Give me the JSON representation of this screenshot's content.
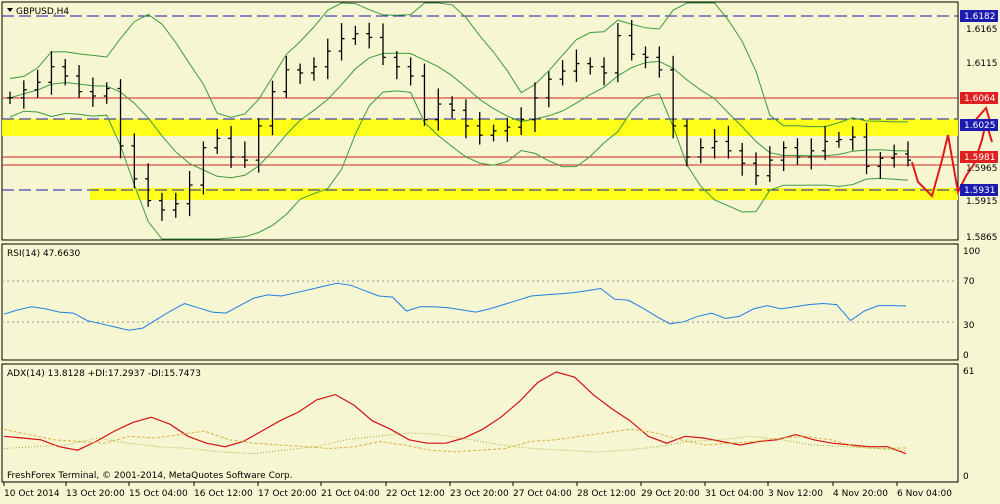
{
  "title": "GBPUSD,H4",
  "colors": {
    "bg": "#F6F6D2",
    "bands": "#3E9A3E",
    "bars": "#000000",
    "support": "#FFFF1A",
    "hline": "#D42020",
    "dashed": "#1B1BB0",
    "rsi": "#1E7FE6",
    "adx": "#D41010",
    "plus_di": "#D8B040",
    "minus_di": "#A8A838"
  },
  "price_panel": {
    "tick_labels": [
      "1.6165",
      "1.6115",
      "1.5965",
      "1.5915",
      "1.5865"
    ],
    "level_labels": {
      "top_dashed": "1.6182",
      "red_upper": "1.6064",
      "yellow_upper": "1.6025",
      "red_current": "1.5981",
      "dashed_lower": "1.5931"
    }
  },
  "rsi_panel": {
    "label": "RSI(14) 47.6630",
    "ticks": [
      "100",
      "70",
      "30",
      "0"
    ]
  },
  "adx_panel": {
    "label": "ADX(14) 13.8128 +DI:17.2937 -DI:15.7473",
    "ticks": [
      "61",
      "0"
    ],
    "copyright": "FreshForex Terminal, © 2001-2014, MetaQuotes Software Corp."
  },
  "time_axis": [
    "10 Oct 2014",
    "13 Oct 20:00",
    "15 Oct 04:00",
    "16 Oct 12:00",
    "17 Oct 20:00",
    "21 Oct 04:00",
    "22 Oct 12:00",
    "23 Oct 20:00",
    "27 Oct 04:00",
    "28 Oct 12:00",
    "29 Oct 20:00",
    "31 Oct 04:00",
    "3 Nov 12:00",
    "4 Nov 20:00",
    "6 Nov 04:00"
  ],
  "chart_data": [
    {
      "type": "line",
      "title": "GBPUSD,H4",
      "xlabel": "",
      "ylabel": "",
      "x_ticks": [
        "10 Oct 2014",
        "13 Oct 20:00",
        "15 Oct 04:00",
        "16 Oct 12:00",
        "17 Oct 20:00",
        "21 Oct 04:00",
        "22 Oct 12:00",
        "23 Oct 20:00",
        "27 Oct 04:00",
        "28 Oct 12:00",
        "29 Oct 20:00",
        "31 Oct 04:00",
        "3 Nov 12:00",
        "4 Nov 20:00",
        "6 Nov 04:00"
      ],
      "y_ticks": [
        1.6165,
        1.6115,
        1.5965,
        1.5915,
        1.5865
      ],
      "ylim": [
        1.585,
        1.621
      ],
      "horizontal_levels": [
        1.6182,
        1.6064,
        1.6025,
        1.5981,
        1.5931
      ],
      "series": [
        {
          "values": [
            1.6075,
            1.6088,
            1.61,
            1.6125,
            1.611,
            1.6085,
            1.6078,
            1.609,
            1.5998,
            1.5945,
            1.591,
            1.5895,
            1.5905,
            1.5935,
            1.5995,
            1.601,
            1.598,
            1.5975,
            1.603,
            1.6085,
            1.612,
            1.6115,
            1.6125,
            1.615,
            1.617,
            1.6178,
            1.6172,
            1.614,
            1.6125,
            1.611,
            1.604,
            1.6065,
            1.6055,
            1.603,
            1.6015,
            1.6022,
            1.6028,
            1.604,
            1.6075,
            1.6105,
            1.6118,
            1.613,
            1.6125,
            1.6115,
            1.6175,
            1.6145,
            1.614,
            1.612,
            1.603,
            1.598,
            1.5995,
            1.6005,
            1.599,
            1.597,
            1.595,
            1.5975,
            1.5995,
            1.598,
            1.599,
            1.6005,
            1.6008,
            1.6012,
            1.5965,
            1.5978,
            1.5985,
            1.5975
          ]
        }
      ]
    },
    {
      "type": "line",
      "title": "RSI(14) 47.6630",
      "ylim": [
        0,
        100
      ],
      "y_ticks": [
        100,
        70,
        30,
        0
      ],
      "series": [
        {
          "values": [
            40,
            44,
            47,
            45,
            42,
            41,
            34,
            31,
            28,
            25,
            27,
            35,
            43,
            50,
            46,
            42,
            41,
            48,
            55,
            58,
            57,
            60,
            63,
            66,
            69,
            67,
            62,
            57,
            56,
            43,
            47,
            47,
            46,
            44,
            42,
            45,
            49,
            53,
            57,
            58,
            59,
            60,
            62,
            64,
            54,
            53,
            46,
            38,
            31,
            33,
            38,
            41,
            36,
            38,
            45,
            48,
            45,
            47,
            49,
            50,
            49,
            34,
            43,
            48,
            48,
            47.66
          ]
        }
      ]
    },
    {
      "type": "line",
      "title": "ADX(14) 13.8128 +DI:17.2937 -DI:15.7473",
      "ylim": [
        0,
        61
      ],
      "y_ticks": [
        61,
        0
      ],
      "series": [
        {
          "values": [
            24,
            23,
            22,
            18,
            16,
            21,
            27,
            32,
            35,
            31,
            24,
            20,
            18,
            21,
            27,
            33,
            38,
            45,
            48,
            42,
            33,
            28,
            22,
            20,
            20,
            23,
            28,
            35,
            44,
            55,
            61,
            58,
            48,
            40,
            33,
            24,
            20,
            24,
            23,
            21,
            19,
            21,
            22,
            25,
            22,
            20,
            19,
            18,
            18,
            14
          ]
        },
        {
          "values": [
            28,
            25,
            22,
            21,
            20,
            24,
            23,
            25,
            27,
            22,
            20,
            19,
            18,
            17,
            18,
            21,
            19,
            16,
            15,
            16,
            17,
            21,
            22,
            24,
            26,
            28,
            26,
            22,
            19,
            20,
            21,
            23,
            24,
            22,
            18,
            17,
            17.3
          ]
        },
        {
          "values": [
            17,
            18,
            19,
            23,
            20,
            18,
            17,
            15,
            14,
            16,
            18,
            22,
            24,
            26,
            25,
            22,
            19,
            17,
            16,
            15,
            16,
            18,
            21,
            22,
            24,
            22,
            19,
            18,
            17,
            15.7
          ]
        }
      ]
    }
  ]
}
